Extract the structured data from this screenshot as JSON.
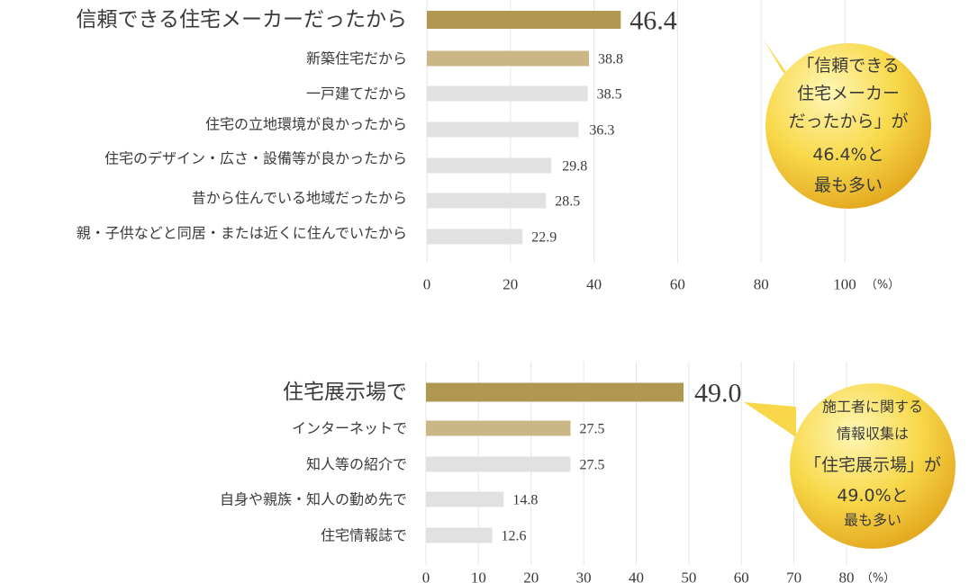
{
  "colors": {
    "top_bar": "#b09851",
    "second_bar": "#cbb685",
    "other_bar": "#e2e1e1",
    "grid": "#e6e6e6",
    "bubble_light": "#fff7b5",
    "bubble_mid": "#f8d84a",
    "bubble_dark": "#e2a51d"
  },
  "chart_data": [
    {
      "type": "bar",
      "orientation": "horizontal",
      "categories": [
        "信頼できる住宅メーカーだったから",
        "新築住宅だから",
        "一戸建てだから",
        "住宅の立地環境が良かったから",
        "住宅のデザイン・広さ・設備等が良かったから",
        "昔から住んでいる地域だったから",
        "親・子供などと同居・または近くに住んでいたから"
      ],
      "values": [
        46.4,
        38.8,
        38.5,
        36.3,
        29.8,
        28.5,
        22.9
      ],
      "value_labels": [
        "46.4",
        "38.8",
        "38.5",
        "36.3",
        "29.8",
        "28.5",
        "22.9"
      ],
      "xlim": [
        0,
        100
      ],
      "ticks": [
        "0",
        "20",
        "40",
        "60",
        "80",
        "100"
      ],
      "unit": "（%）",
      "grid": true,
      "callout": [
        "「信頼できる",
        "住宅メーカー",
        "だったから」が",
        "46.4%と",
        "最も多い"
      ]
    },
    {
      "type": "bar",
      "orientation": "horizontal",
      "categories": [
        "住宅展示場で",
        "インターネットで",
        "知人等の紹介で",
        "自身や親族・知人の勤め先で",
        "住宅情報誌で"
      ],
      "values": [
        49.0,
        27.5,
        27.5,
        14.8,
        12.6
      ],
      "value_labels": [
        "49.0",
        "27.5",
        "27.5",
        "14.8",
        "12.6"
      ],
      "xlim": [
        0,
        80
      ],
      "ticks": [
        "0",
        "10",
        "20",
        "30",
        "40",
        "50",
        "60",
        "70",
        "80"
      ],
      "unit": "（%）",
      "grid": true,
      "callout": [
        "施工者に関する",
        "情報収集は",
        "「住宅展示場」が",
        "49.0%と",
        "最も多い"
      ]
    }
  ]
}
